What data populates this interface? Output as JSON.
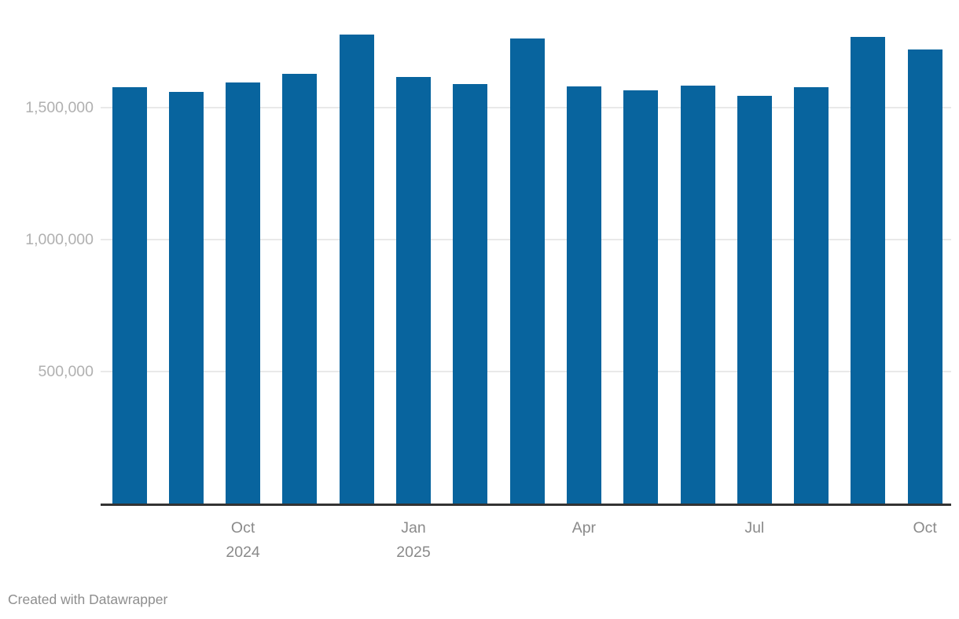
{
  "chart_data": {
    "type": "bar",
    "x": [
      "Aug 2024",
      "Sep 2024",
      "Oct 2024",
      "Nov 2024",
      "Dec 2024",
      "Jan 2025",
      "Feb 2025",
      "Mar 2025",
      "Apr 2025",
      "May 2025",
      "Jun 2025",
      "Jul 2025",
      "Aug 2025",
      "Sep 2025",
      "Oct 2025"
    ],
    "values": [
      1577000,
      1560000,
      1596000,
      1628000,
      1777000,
      1616000,
      1589000,
      1762000,
      1580000,
      1565000,
      1584000,
      1545000,
      1577000,
      1768000,
      1720000
    ],
    "title": "",
    "xlabel": "",
    "ylabel": "",
    "ylim": [
      0,
      1908000
    ],
    "grid": "horizontal-only",
    "legend": "none",
    "y_ticks": [
      {
        "value": 500000,
        "label": "500,000"
      },
      {
        "value": 1000000,
        "label": "1,000,000"
      },
      {
        "value": 1500000,
        "label": "1,500,000"
      }
    ],
    "x_ticks": [
      {
        "index": 2,
        "label": "Oct\n2024"
      },
      {
        "index": 5,
        "label": "Jan\n2025"
      },
      {
        "index": 8,
        "label": "Apr"
      },
      {
        "index": 11,
        "label": "Jul"
      },
      {
        "index": 14,
        "label": "Oct"
      }
    ]
  },
  "colors": {
    "bar": "#08649e",
    "gridline": "#e9e9e9",
    "axis_line": "#333333",
    "y_tick_label": "#b0b0b0",
    "x_tick_label": "#8a8a8a",
    "credit": "#8e8e8e"
  },
  "footer": {
    "credit": "Created with Datawrapper"
  }
}
